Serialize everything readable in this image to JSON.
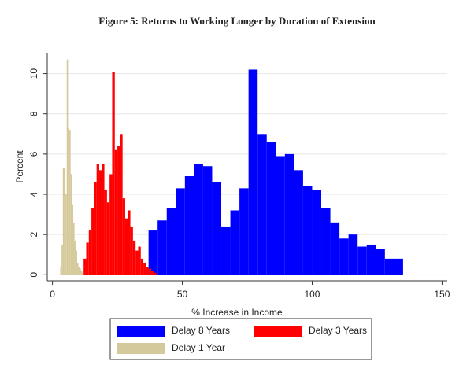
{
  "chart_data": {
    "type": "histogram",
    "title": "Figure 5: Returns to Working Longer by Duration of Extension",
    "x_label": "% Increase in Income",
    "y_label": "Percent",
    "xlim": [
      -2,
      152
    ],
    "xticks": [
      0,
      50,
      100,
      150
    ],
    "ylim": [
      -0.3,
      11
    ],
    "yticks": [
      0,
      2,
      4,
      6,
      8,
      10
    ],
    "grid": true,
    "legend": "bottom",
    "series": [
      {
        "name": "Delay 8 Years",
        "color": "#0000ff",
        "bins": [
          37,
          40.5,
          44,
          47.5,
          51,
          54.5,
          58,
          61.5,
          65,
          68.5,
          72,
          75.5,
          79,
          82.5,
          86,
          89.5,
          93,
          96.5,
          100,
          103.5,
          107,
          110.5,
          114,
          117.5,
          121,
          124.5,
          128,
          131.5,
          135
        ],
        "values": [
          2.2,
          2.7,
          3.3,
          4.3,
          4.9,
          5.5,
          5.4,
          4.6,
          2.4,
          3.2,
          4.3,
          10.2,
          7.0,
          6.6,
          5.9,
          6.0,
          5.2,
          4.4,
          4.2,
          3.3,
          2.6,
          1.8,
          2.0,
          1.4,
          1.5,
          1.3,
          0.8,
          0.8
        ]
      },
      {
        "name": "Delay 3 Years",
        "color": "#ff0000",
        "bins": [
          12,
          13,
          14,
          15,
          16,
          17,
          18,
          19,
          20,
          21,
          22,
          23,
          24,
          25,
          26,
          27,
          28,
          29,
          30,
          31,
          32,
          33,
          34,
          35,
          36,
          37,
          38,
          39,
          40
        ],
        "values": [
          0.8,
          1.6,
          2.2,
          3.3,
          4.6,
          5.5,
          5.2,
          5.5,
          4.2,
          3.6,
          5.0,
          10.1,
          6.2,
          6.4,
          7.0,
          3.8,
          2.8,
          3.2,
          2.4,
          1.7,
          1.2,
          1.4,
          0.8,
          0.6,
          0.4,
          0.3,
          0.2,
          0.1
        ]
      },
      {
        "name": "Delay 1 Year",
        "color": "#d4c99a",
        "bins": [
          3,
          3.5,
          4,
          4.5,
          5,
          5.5,
          6,
          6.5,
          7,
          7.5,
          8,
          8.5,
          9,
          9.5,
          10,
          10.5,
          11,
          11.5,
          12
        ],
        "values": [
          0.4,
          1.5,
          5.3,
          5.3,
          4.0,
          10.7,
          7.3,
          7.2,
          5.0,
          3.5,
          2.6,
          1.7,
          1.2,
          0.6,
          0.4,
          0.3,
          0.2,
          0.1
        ]
      }
    ]
  }
}
